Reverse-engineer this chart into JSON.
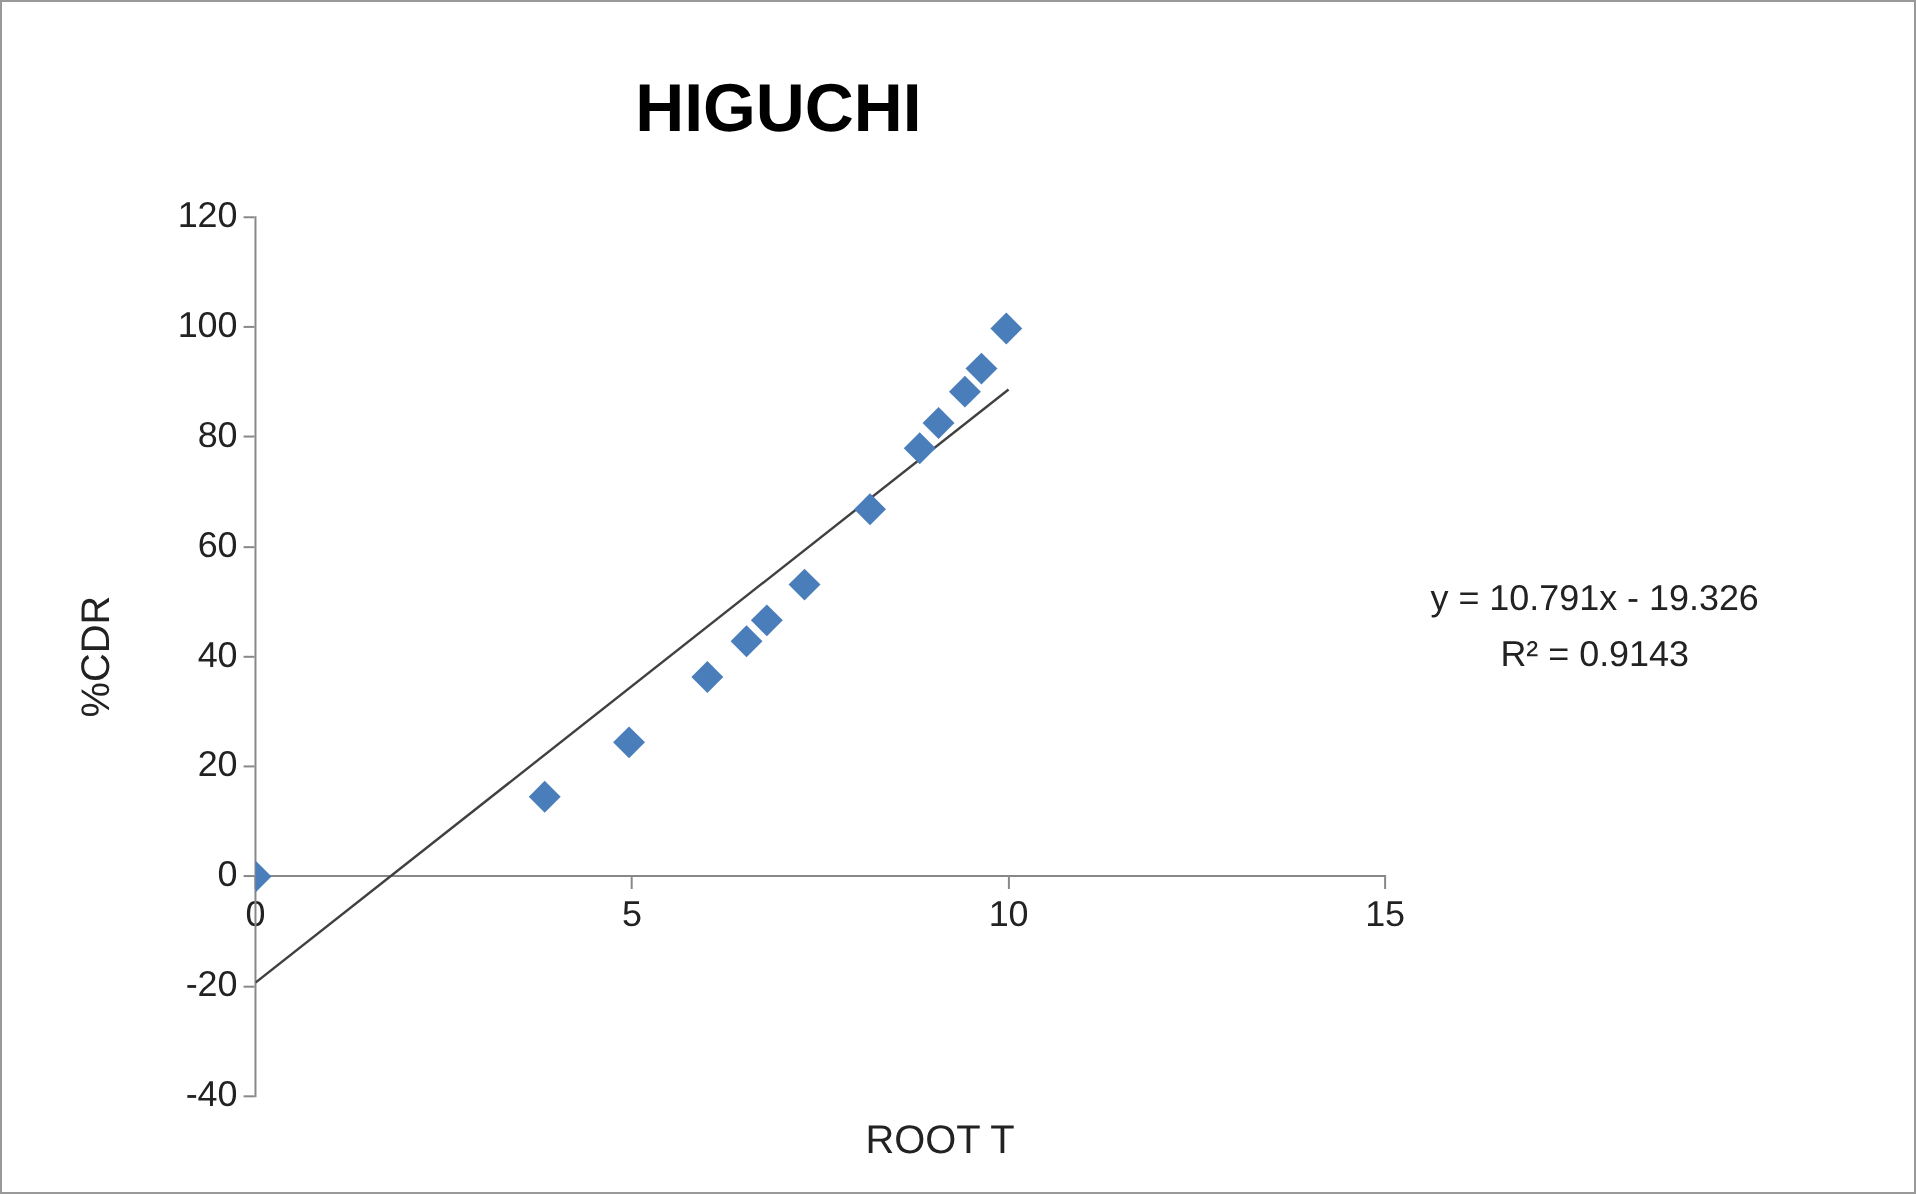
{
  "chart_data": {
    "type": "scatter",
    "title": "HIGUCHI",
    "xlabel": "ROOT T",
    "ylabel": "%CDR",
    "series": [
      {
        "color": "#4a7ebb",
        "x": [
          0,
          3.84,
          4.96,
          6.0,
          6.52,
          6.79,
          7.29,
          8.16,
          8.82,
          9.07,
          9.42,
          9.64,
          9.97
        ],
        "values": [
          0,
          14.5,
          24.4,
          36.3,
          42.8,
          46.6,
          53.1,
          66.8,
          77.9,
          82.5,
          88.2,
          92.4,
          99.7
        ],
        "marker": "diamond"
      },
      {
        "type": "line",
        "color": "#404040",
        "x": [
          0,
          10
        ],
        "values": [
          -19.3,
          88.6
        ],
        "marker": "none"
      }
    ],
    "annotations": [
      "y = 10.791x - 19.326",
      "R² = 0.9143"
    ],
    "xlim": [
      0,
      15
    ],
    "xticks": [
      0,
      5,
      10,
      15
    ],
    "ylim": [
      -40,
      120
    ],
    "yticks": [
      -40,
      -20,
      0,
      20,
      40,
      60,
      80,
      100,
      120
    ],
    "grid": false,
    "legend": false
  }
}
